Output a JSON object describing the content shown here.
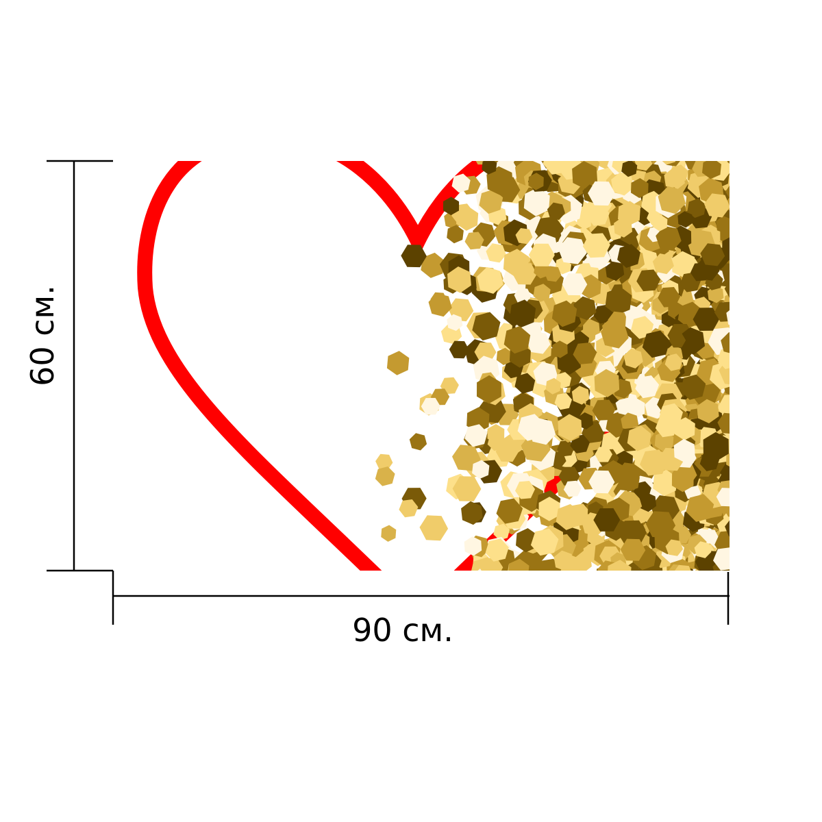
{
  "height_label": "60 см.",
  "width_label": "90 см."
}
